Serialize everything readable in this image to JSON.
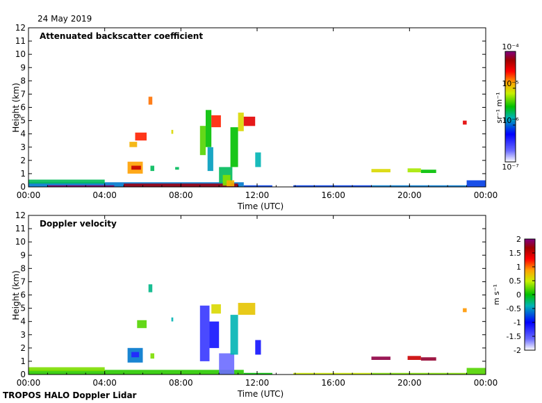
{
  "header": {
    "date": "24 May 2019"
  },
  "footer": {
    "credit": "TROPOS HALO Doppler Lidar"
  },
  "chart_data": [
    {
      "type": "heatmap",
      "title": "Attenuated backscatter coefficient",
      "xlabel": "Time (UTC)",
      "ylabel": "Height (km)",
      "xticks": [
        "00:00",
        "04:00",
        "08:00",
        "12:00",
        "16:00",
        "20:00",
        "00:00"
      ],
      "xlim": [
        0,
        24
      ],
      "yticks": [
        "0",
        "1",
        "2",
        "3",
        "4",
        "5",
        "6",
        "7",
        "8",
        "9",
        "10",
        "11",
        "12"
      ],
      "ylim": [
        0,
        12
      ],
      "colorbar": {
        "label": "sr⁻¹ m⁻¹",
        "scale": "log",
        "range": [
          1e-07,
          0.0001
        ],
        "ticks": [
          "10⁻⁴",
          "10⁻⁵",
          "10⁻⁶",
          "10⁻⁷"
        ]
      },
      "regions": [
        {
          "t0": 0.0,
          "t1": 11.3,
          "h0": 0.0,
          "h1": 0.35,
          "v": 0.35
        },
        {
          "t0": 0.0,
          "t1": 4.0,
          "h0": 0.25,
          "h1": 0.55,
          "v": 0.45
        },
        {
          "t0": 1.0,
          "t1": 4.5,
          "h0": 0.0,
          "h1": 0.12,
          "v": 0.98
        },
        {
          "t0": 5.0,
          "t1": 11.0,
          "h0": 0.0,
          "h1": 0.25,
          "v": 0.93
        },
        {
          "t0": 5.2,
          "t1": 6.0,
          "h0": 1.0,
          "h1": 1.9,
          "v": 0.72
        },
        {
          "t0": 5.4,
          "t1": 5.9,
          "h0": 1.3,
          "h1": 1.6,
          "v": 0.88
        },
        {
          "t0": 5.6,
          "t1": 6.2,
          "h0": 3.5,
          "h1": 4.1,
          "v": 0.8
        },
        {
          "t0": 5.3,
          "t1": 5.7,
          "h0": 3.0,
          "h1": 3.4,
          "v": 0.7
        },
        {
          "t0": 6.3,
          "t1": 6.5,
          "h0": 6.2,
          "h1": 6.8,
          "v": 0.75
        },
        {
          "t0": 6.4,
          "t1": 6.6,
          "h0": 1.2,
          "h1": 1.6,
          "v": 0.45
        },
        {
          "t0": 7.5,
          "t1": 7.6,
          "h0": 4.0,
          "h1": 4.3,
          "v": 0.65
        },
        {
          "t0": 7.7,
          "t1": 7.9,
          "h0": 1.3,
          "h1": 1.5,
          "v": 0.45
        },
        {
          "t0": 9.0,
          "t1": 9.3,
          "h0": 2.4,
          "h1": 4.6,
          "v": 0.55
        },
        {
          "t0": 9.3,
          "t1": 9.6,
          "h0": 3.0,
          "h1": 5.8,
          "v": 0.5
        },
        {
          "t0": 9.6,
          "t1": 10.1,
          "h0": 4.5,
          "h1": 5.4,
          "v": 0.8
        },
        {
          "t0": 9.4,
          "t1": 9.7,
          "h0": 1.2,
          "h1": 3.0,
          "v": 0.38
        },
        {
          "t0": 10.0,
          "t1": 10.7,
          "h0": 0.3,
          "h1": 1.5,
          "v": 0.45
        },
        {
          "t0": 10.2,
          "t1": 10.6,
          "h0": 0.1,
          "h1": 0.9,
          "v": 0.58
        },
        {
          "t0": 10.4,
          "t1": 10.8,
          "h0": 0.05,
          "h1": 0.5,
          "v": 0.7
        },
        {
          "t0": 10.6,
          "t1": 11.0,
          "h0": 1.5,
          "h1": 4.5,
          "v": 0.5
        },
        {
          "t0": 11.0,
          "t1": 11.3,
          "h0": 4.2,
          "h1": 5.6,
          "v": 0.65
        },
        {
          "t0": 11.3,
          "t1": 11.9,
          "h0": 4.6,
          "h1": 5.3,
          "v": 0.85
        },
        {
          "t0": 11.9,
          "t1": 12.2,
          "h0": 1.5,
          "h1": 2.6,
          "v": 0.4
        },
        {
          "t0": 11.3,
          "t1": 12.8,
          "h0": 0.0,
          "h1": 0.12,
          "v": 0.3
        },
        {
          "t0": 13.9,
          "t1": 18.0,
          "h0": 0.0,
          "h1": 0.12,
          "v": 0.3
        },
        {
          "t0": 18.0,
          "t1": 23.0,
          "h0": 0.0,
          "h1": 0.12,
          "v": 0.35
        },
        {
          "t0": 18.0,
          "t1": 19.0,
          "h0": 1.1,
          "h1": 1.35,
          "v": 0.65
        },
        {
          "t0": 19.9,
          "t1": 20.6,
          "h0": 1.1,
          "h1": 1.4,
          "v": 0.6
        },
        {
          "t0": 20.6,
          "t1": 21.4,
          "h0": 1.05,
          "h1": 1.3,
          "v": 0.5
        },
        {
          "t0": 23.0,
          "t1": 24.0,
          "h0": 0.0,
          "h1": 0.5,
          "v": 0.3
        },
        {
          "t0": 22.8,
          "t1": 23.0,
          "h0": 4.7,
          "h1": 5.0,
          "v": 0.85
        }
      ]
    },
    {
      "type": "heatmap",
      "title": "Doppler velocity",
      "xlabel": "Time (UTC)",
      "ylabel": "Height (km)",
      "xticks": [
        "00:00",
        "04:00",
        "08:00",
        "12:00",
        "16:00",
        "20:00",
        "00:00"
      ],
      "xlim": [
        0,
        24
      ],
      "yticks": [
        "0",
        "1",
        "2",
        "3",
        "4",
        "5",
        "6",
        "7",
        "8",
        "9",
        "10",
        "11",
        "12"
      ],
      "ylim": [
        0,
        12
      ],
      "colorbar": {
        "label": "m s⁻¹",
        "scale": "linear",
        "range": [
          -2,
          2
        ],
        "ticks": [
          "2",
          "1.5",
          "1",
          "0.5",
          "0",
          "-0.5",
          "-1",
          "-1.5",
          "-2"
        ]
      },
      "regions": [
        {
          "t0": 0.0,
          "t1": 11.3,
          "h0": 0.0,
          "h1": 0.35,
          "v": 0.1
        },
        {
          "t0": 0.0,
          "t1": 4.0,
          "h0": 0.25,
          "h1": 0.55,
          "v": 0.3
        },
        {
          "t0": 5.2,
          "t1": 6.0,
          "h0": 0.9,
          "h1": 2.0,
          "v": -0.6
        },
        {
          "t0": 5.4,
          "t1": 5.8,
          "h0": 1.3,
          "h1": 1.7,
          "v": -1.2
        },
        {
          "t0": 5.7,
          "t1": 6.2,
          "h0": 3.5,
          "h1": 4.1,
          "v": 0.2
        },
        {
          "t0": 6.3,
          "t1": 6.5,
          "h0": 6.2,
          "h1": 6.8,
          "v": -0.3
        },
        {
          "t0": 6.4,
          "t1": 6.6,
          "h0": 1.2,
          "h1": 1.6,
          "v": 0.3
        },
        {
          "t0": 7.5,
          "t1": 7.6,
          "h0": 4.0,
          "h1": 4.3,
          "v": -0.4
        },
        {
          "t0": 9.0,
          "t1": 9.5,
          "h0": 1.0,
          "h1": 5.2,
          "v": -1.3
        },
        {
          "t0": 9.5,
          "t1": 10.0,
          "h0": 2.0,
          "h1": 4.0,
          "v": -1.1
        },
        {
          "t0": 9.6,
          "t1": 10.1,
          "h0": 4.6,
          "h1": 5.3,
          "v": 0.6
        },
        {
          "t0": 10.0,
          "t1": 10.8,
          "h0": 0.0,
          "h1": 1.6,
          "v": -1.6
        },
        {
          "t0": 10.6,
          "t1": 11.0,
          "h0": 1.5,
          "h1": 4.5,
          "v": -0.4
        },
        {
          "t0": 11.0,
          "t1": 11.9,
          "h0": 4.5,
          "h1": 5.4,
          "v": 0.7
        },
        {
          "t0": 11.9,
          "t1": 12.2,
          "h0": 1.5,
          "h1": 2.6,
          "v": -1.1
        },
        {
          "t0": 11.3,
          "t1": 12.8,
          "h0": 0.0,
          "h1": 0.12,
          "v": 0.0
        },
        {
          "t0": 13.9,
          "t1": 18.0,
          "h0": 0.0,
          "h1": 0.12,
          "v": 0.5
        },
        {
          "t0": 18.0,
          "t1": 23.0,
          "h0": 0.0,
          "h1": 0.12,
          "v": 0.3
        },
        {
          "t0": 18.0,
          "t1": 19.0,
          "h0": 1.1,
          "h1": 1.35,
          "v": 1.85
        },
        {
          "t0": 19.9,
          "t1": 20.6,
          "h0": 1.1,
          "h1": 1.4,
          "v": 1.5
        },
        {
          "t0": 20.6,
          "t1": 21.4,
          "h0": 1.05,
          "h1": 1.3,
          "v": 1.8
        },
        {
          "t0": 23.0,
          "t1": 24.0,
          "h0": 0.0,
          "h1": 0.5,
          "v": 0.2
        },
        {
          "t0": 22.8,
          "t1": 23.0,
          "h0": 4.7,
          "h1": 5.0,
          "v": 0.9
        }
      ]
    }
  ]
}
